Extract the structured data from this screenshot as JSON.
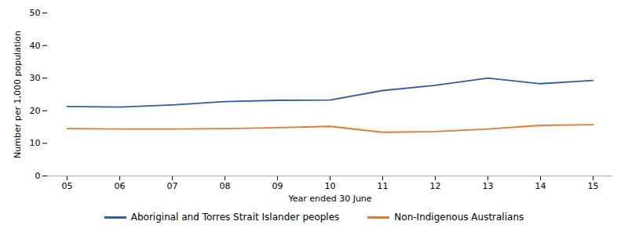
{
  "chart_data": {
    "type": "line",
    "xlabel": "Year ended 30 June",
    "ylabel": "Number per 1,000 population",
    "categories": [
      "05",
      "06",
      "07",
      "08",
      "09",
      "10",
      "11",
      "12",
      "13",
      "14",
      "15"
    ],
    "series": [
      {
        "name": "Aboriginal and Torres Strait Islander peoples",
        "color": "#2E5EA8",
        "values": [
          21.3,
          21.1,
          21.8,
          22.8,
          23.2,
          23.3,
          26.2,
          27.8,
          30.0,
          28.3,
          29.3
        ]
      },
      {
        "name": "Non-Indigenous Australians",
        "color": "#E07B30",
        "values": [
          14.5,
          14.4,
          14.4,
          14.5,
          14.8,
          15.2,
          13.4,
          13.6,
          14.4,
          15.5,
          15.7
        ]
      }
    ],
    "ylim": [
      0,
      50
    ],
    "yticks": [
      0,
      10,
      20,
      30,
      40,
      50
    ],
    "grid": false,
    "legend": "bottom"
  }
}
